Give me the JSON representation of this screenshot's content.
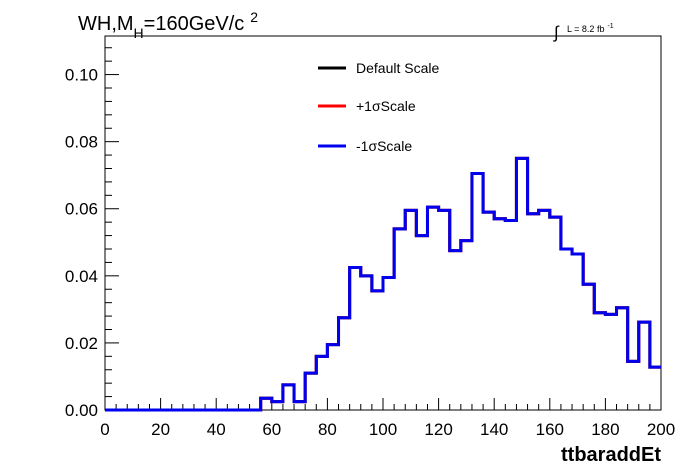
{
  "title": {
    "main": "WH,M",
    "sub": "H",
    "rest": "=160GeV/c",
    "sup": "2"
  },
  "lumi": {
    "integral": "∫",
    "text": "L = 8.2 fb",
    "sup": "-1"
  },
  "chart_data": {
    "type": "line",
    "xlabel": "ttbaraddEt",
    "ylabel": "",
    "xlim": [
      0,
      200
    ],
    "ylim": [
      0,
      0.1115
    ],
    "grid": false,
    "legend_position": "top-center",
    "x_ticks": [
      "0",
      "20",
      "40",
      "60",
      "80",
      "100",
      "120",
      "140",
      "160",
      "180",
      "200"
    ],
    "y_ticks": [
      "0.00",
      "0.02",
      "0.04",
      "0.06",
      "0.08",
      "0.10"
    ],
    "bin_edges": [
      0,
      4,
      8,
      12,
      16,
      20,
      24,
      28,
      32,
      36,
      40,
      44,
      48,
      52,
      56,
      60,
      64,
      68,
      72,
      76,
      80,
      84,
      88,
      92,
      96,
      100,
      104,
      108,
      112,
      116,
      120,
      124,
      128,
      132,
      136,
      140,
      144,
      148,
      152,
      156,
      160,
      164,
      168,
      172,
      176,
      180,
      184,
      188,
      192,
      196,
      200
    ],
    "series": [
      {
        "name": "Default Scale",
        "color": "#000000",
        "values": [
          0,
          0,
          0,
          0,
          0,
          0,
          0,
          0,
          0,
          0,
          0,
          0,
          0,
          0,
          0.0035,
          0.0025,
          0.0075,
          0.0025,
          0.011,
          0.016,
          0.0195,
          0.0275,
          0.0425,
          0.04,
          0.0355,
          0.0395,
          0.054,
          0.0595,
          0.052,
          0.0605,
          0.0595,
          0.0475,
          0.0505,
          0.0705,
          0.059,
          0.057,
          0.0565,
          0.075,
          0.0585,
          0.0595,
          0.0575,
          0.048,
          0.0465,
          0.0375,
          0.029,
          0.0285,
          0.0305,
          0.0145,
          0.0262,
          0.0128
        ]
      },
      {
        "name": "+1σScale",
        "color": "#ff0000",
        "values": [
          0,
          0,
          0,
          0,
          0,
          0,
          0,
          0,
          0,
          0,
          0,
          0,
          0,
          0,
          0.0035,
          0.0025,
          0.0075,
          0.0025,
          0.011,
          0.016,
          0.0195,
          0.0275,
          0.0425,
          0.04,
          0.0355,
          0.0395,
          0.054,
          0.0595,
          0.052,
          0.0605,
          0.0595,
          0.0475,
          0.0505,
          0.0705,
          0.059,
          0.057,
          0.0565,
          0.075,
          0.0585,
          0.0595,
          0.0575,
          0.048,
          0.0465,
          0.0375,
          0.029,
          0.0285,
          0.0305,
          0.0145,
          0.0262,
          0.0128
        ]
      },
      {
        "name": "-1σScale",
        "color": "#0000ee",
        "values": [
          0,
          0,
          0,
          0,
          0,
          0,
          0,
          0,
          0,
          0,
          0,
          0,
          0,
          0,
          0.0035,
          0.0025,
          0.0075,
          0.0025,
          0.011,
          0.016,
          0.0195,
          0.0275,
          0.0425,
          0.04,
          0.0355,
          0.0395,
          0.054,
          0.0595,
          0.052,
          0.0605,
          0.0595,
          0.0475,
          0.0505,
          0.0705,
          0.059,
          0.057,
          0.0565,
          0.075,
          0.0585,
          0.0595,
          0.0575,
          0.048,
          0.0465,
          0.0375,
          0.029,
          0.0285,
          0.0305,
          0.0145,
          0.0262,
          0.0128
        ]
      }
    ]
  }
}
